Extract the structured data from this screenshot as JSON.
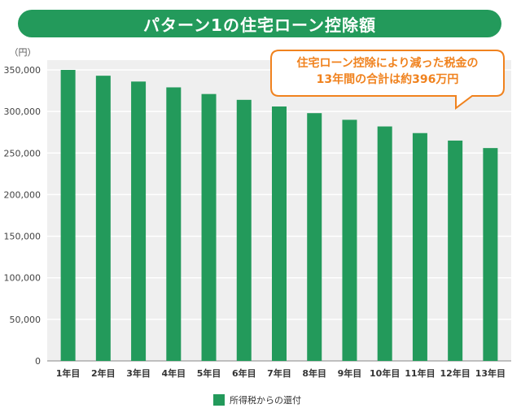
{
  "colors": {
    "title_bg": "#239a5b",
    "bar": "#239a5b",
    "callout_border": "#f0821e",
    "plot_bg": "#efefef"
  },
  "chart_data": {
    "type": "bar",
    "title": "パターン1の住宅ローン控除額",
    "ylabel": "（円）",
    "xlabel": "",
    "ylim": [
      0,
      350000
    ],
    "y_ticks": [
      0,
      50000,
      100000,
      150000,
      200000,
      250000,
      300000,
      350000
    ],
    "y_tick_labels": [
      "0",
      "50,000",
      "100,000",
      "150,000",
      "200,000",
      "250,000",
      "300,000",
      "350,000"
    ],
    "categories": [
      "1年目",
      "2年目",
      "3年目",
      "4年目",
      "5年目",
      "6年目",
      "7年目",
      "8年目",
      "9年目",
      "10年目",
      "11年目",
      "12年目",
      "13年目"
    ],
    "series": [
      {
        "name": "所得税からの還付",
        "values": [
          350000,
          343000,
          336000,
          329000,
          321000,
          314000,
          306000,
          298000,
          290000,
          282000,
          274000,
          265000,
          256000
        ]
      }
    ],
    "legend_position": "bottom",
    "annotation": {
      "line1": "住宅ローン控除により減った税金の",
      "line2": "13年間の合計は約396万円"
    }
  }
}
